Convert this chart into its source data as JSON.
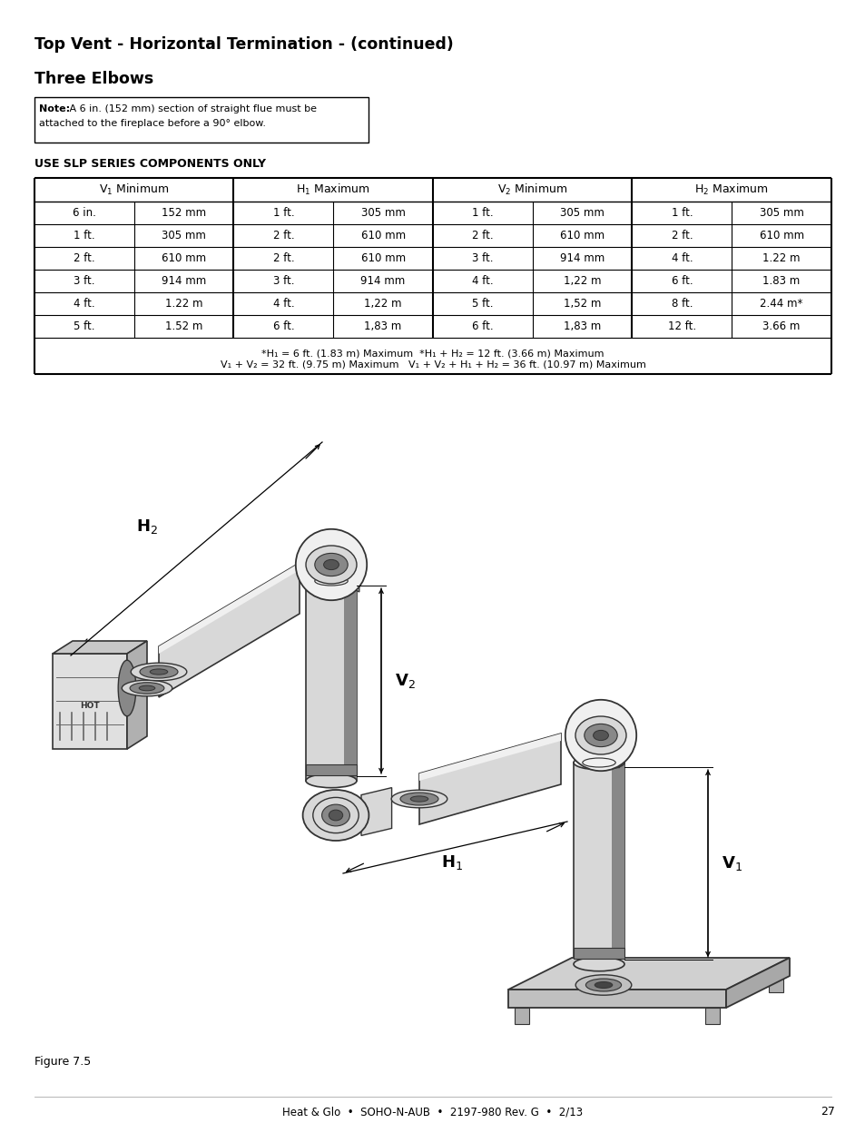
{
  "title": "Top Vent - Horizontal Termination - (continued)",
  "subtitle": "Three Elbows",
  "note_bold": "Note:",
  "note_rest": " A 6 in. (152 mm) section of straight flue must be\nattached to the fireplace before a 90° elbow.",
  "use_label": "USE SLP SERIES COMPONENTS ONLY",
  "table_headers": [
    "V₁ Minimum",
    "H₁ Maximum",
    "V₂ Minimum",
    "H₂ Maximum"
  ],
  "table_data": [
    [
      "6 in.",
      "152 mm",
      "1 ft.",
      "305 mm",
      "1 ft.",
      "305 mm",
      "1 ft.",
      "305 mm"
    ],
    [
      "1 ft.",
      "305 mm",
      "2 ft.",
      "610 mm",
      "2 ft.",
      "610 mm",
      "2 ft.",
      "610 mm"
    ],
    [
      "2 ft.",
      "610 mm",
      "2 ft.",
      "610 mm",
      "3 ft.",
      "914 mm",
      "4 ft.",
      "1.22 m"
    ],
    [
      "3 ft.",
      "914 mm",
      "3 ft.",
      "914 mm",
      "4 ft.",
      "1,22 m",
      "6 ft.",
      "1.83 m"
    ],
    [
      "4 ft.",
      "1.22 m",
      "4 ft.",
      "1,22 m",
      "5 ft.",
      "1,52 m",
      "8 ft.",
      "2.44 m*"
    ],
    [
      "5 ft.",
      "1.52 m",
      "6 ft.",
      "1,83 m",
      "6 ft.",
      "1,83 m",
      "12 ft.",
      "3.66 m"
    ]
  ],
  "footnote_line1": "*H₁ = 6 ft. (1.83 m) Maximum  *H₁ + H₂ = 12 ft. (3.66 m) Maximum",
  "footnote_line2": "V₁ + V₂ = 32 ft. (9.75 m) Maximum   V₁ + V₂ + H₁ + H₂ = 36 ft. (10.97 m) Maximum",
  "figure_label": "Figure 7.5",
  "footer_text": "Heat & Glo  •  SOHO-N-AUB  •  2197-980 Rev. G  •  2/13",
  "page_number": "27",
  "bg_color": "#ffffff",
  "text_color": "#000000",
  "pipe_light": "#f0f0f0",
  "pipe_mid": "#d8d8d8",
  "pipe_dark": "#888888",
  "pipe_edge": "#333333"
}
